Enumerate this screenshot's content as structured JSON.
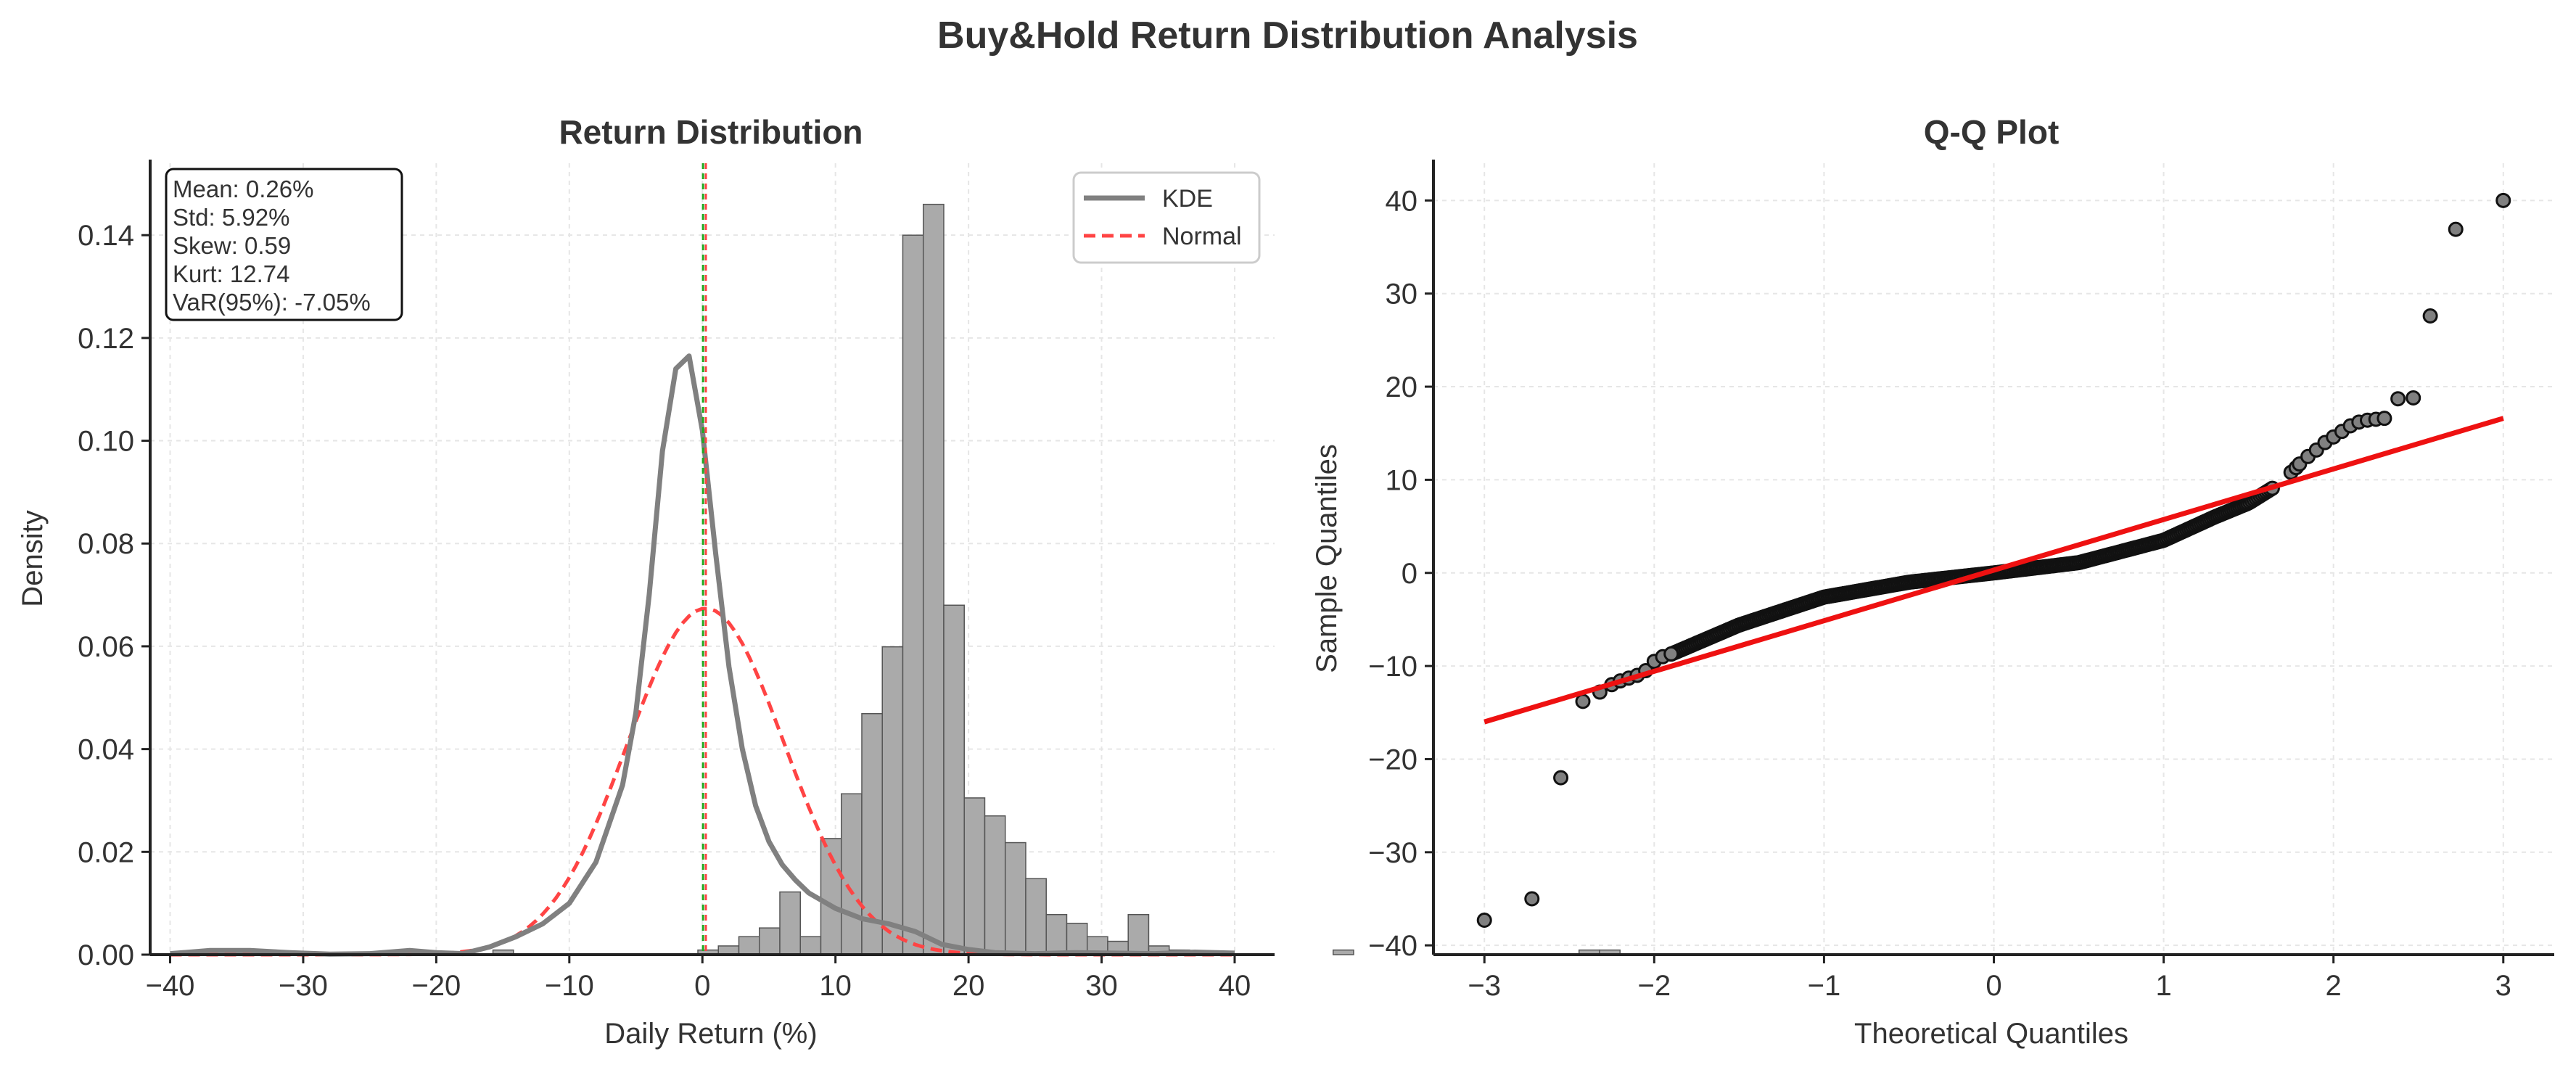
{
  "figure": {
    "suptitle": "Buy&Hold Return Distribution Analysis",
    "colors": {
      "text": "#333333",
      "grid": "#e6e6e6",
      "bar": "#aaaaaa",
      "bar_edge": "#555555",
      "kde": "#808080",
      "normal": "#ff4444",
      "qq_line": "#ee1111",
      "qq_point_fill": "#808080",
      "qq_point_edge": "#111111",
      "mean_line": "#ff4444",
      "median_line": "#22aa22"
    }
  },
  "chart_data": [
    {
      "type": "bar",
      "title": "Return Distribution",
      "xlabel": "Daily Return (%)",
      "ylabel": "Density",
      "xlim": [
        -41.5,
        43
      ],
      "ylim": [
        0,
        0.154
      ],
      "xticks": [
        -40,
        -30,
        -20,
        -10,
        0,
        10,
        20,
        30,
        40
      ],
      "xtick_labels": [
        "−40",
        "−30",
        "−20",
        "−10",
        "0",
        "10",
        "20",
        "30",
        "40"
      ],
      "yticks": [
        0.0,
        0.02,
        0.04,
        0.06,
        0.08,
        0.1,
        0.12,
        0.14
      ],
      "ytick_labels": [
        "0.00",
        "0.02",
        "0.04",
        "0.06",
        "0.08",
        "0.10",
        "0.12",
        "0.14"
      ],
      "grid": true,
      "legend_position": "top-right",
      "bins": {
        "start": -37.3,
        "width": 1.54,
        "density": [
          0.0009,
          0.0009,
          0.0009,
          0,
          0,
          0,
          0,
          0,
          0,
          0,
          0,
          0,
          0,
          0,
          0.0009,
          0,
          0,
          0,
          0,
          0,
          0,
          0,
          0,
          0,
          0.0009,
          0.0017,
          0.0035,
          0.0052,
          0.0122,
          0.0035,
          0.0226,
          0.0313,
          0.0469,
          0.0599,
          0.14,
          0.146,
          0.068,
          0.0305,
          0.027,
          0.0218,
          0.0148,
          0.0078,
          0.0061,
          0.0035,
          0.0026,
          0.0078,
          0.0017,
          0.0009,
          0,
          0,
          0,
          0,
          0,
          0,
          0,
          0.0009,
          0,
          0,
          0,
          0,
          0,
          0,
          0,
          0,
          0,
          0,
          0,
          0.0009,
          0.0009
        ]
      },
      "series": [
        {
          "name": "KDE",
          "style": "solid",
          "color": "#808080"
        },
        {
          "name": "Normal",
          "style": "dashed",
          "color": "#ff4444",
          "mean": 0.26,
          "std": 5.92
        }
      ],
      "kde_points": {
        "x": [
          -40,
          -37,
          -34,
          -31,
          -28,
          -25,
          -22,
          -20,
          -18,
          -16,
          -14,
          -12,
          -10,
          -8,
          -6,
          -5,
          -4,
          -3,
          -2,
          -1,
          0,
          1,
          2,
          3,
          4,
          5,
          6,
          7,
          8,
          10,
          12,
          14,
          16,
          18,
          20,
          22,
          25,
          28,
          31,
          34,
          37,
          40
        ],
        "y": [
          0.0002,
          0.0008,
          0.0008,
          0.0004,
          0.0001,
          0.0002,
          0.0008,
          0.0004,
          0.0002,
          0.0015,
          0.0035,
          0.006,
          0.01,
          0.018,
          0.033,
          0.047,
          0.07,
          0.098,
          0.114,
          0.1165,
          0.102,
          0.078,
          0.056,
          0.04,
          0.029,
          0.022,
          0.0175,
          0.0145,
          0.012,
          0.009,
          0.007,
          0.006,
          0.0045,
          0.002,
          0.001,
          0.0004,
          0.0002,
          0.0004,
          0.0003,
          0.0002,
          0.0005,
          0.0003
        ]
      },
      "vlines": {
        "mean": 0.26,
        "median": 0.05
      },
      "stats_box": [
        "Mean: 0.26%",
        "Std: 5.92%",
        "Skew: 0.59",
        "Kurt: 12.74",
        "VaR(95%): -7.05%"
      ]
    },
    {
      "type": "scatter",
      "title": "Q-Q Plot",
      "xlabel": "Theoretical Quantiles",
      "ylabel": "Sample Quantiles",
      "xlim": [
        -3.3,
        3.3
      ],
      "ylim": [
        -41,
        44
      ],
      "xticks": [
        -3,
        -2,
        -1,
        0,
        1,
        2,
        3
      ],
      "xtick_labels": [
        "−3",
        "−2",
        "−1",
        "0",
        "1",
        "2",
        "3"
      ],
      "yticks": [
        -40,
        -30,
        -20,
        -10,
        0,
        10,
        20,
        30,
        40
      ],
      "yticks_labels": [
        "−40",
        "−30",
        "−20",
        "−10",
        "0",
        "10",
        "20",
        "30",
        "40"
      ],
      "grid": true,
      "fit_line": {
        "x": [
          -3,
          3
        ],
        "y": [
          -16.0,
          16.6
        ]
      },
      "quantiles": {
        "x": [
          -3.0,
          -2.72,
          -2.55,
          -2.43,
          -2.33,
          -2.0,
          -1.5,
          -1.0,
          -0.5,
          0.0,
          0.5,
          1.0,
          1.3,
          1.5,
          1.65
        ],
        "y": [
          -37.3,
          -35.0,
          -22.0,
          -13.8,
          -12.3,
          -9.5,
          -5.6,
          -2.6,
          -1.0,
          0.0,
          1.1,
          3.5,
          6.0,
          7.5,
          9.2
        ]
      },
      "tail_points": {
        "x": [
          -3.0,
          -2.72,
          -2.55,
          -2.42,
          -2.32,
          -2.25,
          -2.2,
          -2.15,
          -2.1,
          -2.05,
          -2.0,
          -1.95,
          -1.9,
          1.75,
          1.78,
          1.8,
          1.85,
          1.9,
          1.95,
          2.0,
          2.05,
          2.1,
          2.15,
          2.2,
          2.25,
          2.3,
          2.38,
          2.47,
          2.57,
          2.72,
          3.0
        ],
        "y": [
          -37.3,
          -35.0,
          -22.0,
          -13.8,
          -12.8,
          -12.0,
          -11.6,
          -11.3,
          -11.0,
          -10.5,
          -9.5,
          -9.0,
          -8.7,
          10.8,
          11.3,
          11.7,
          12.5,
          13.2,
          14.0,
          14.6,
          15.2,
          15.8,
          16.2,
          16.4,
          16.5,
          16.6,
          18.7,
          18.8,
          27.6,
          36.9,
          40.0
        ]
      }
    }
  ]
}
